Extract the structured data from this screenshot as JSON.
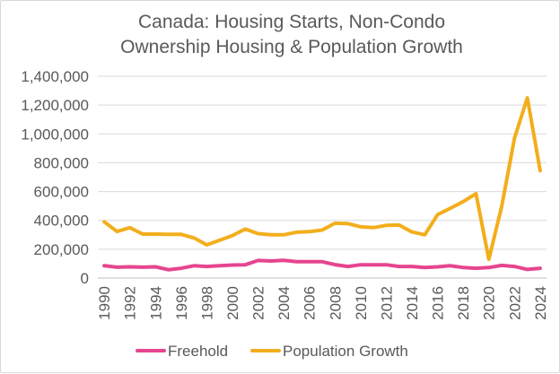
{
  "chart_data": {
    "type": "line",
    "title_lines": [
      "Canada: Housing Starts, Non-Condo",
      "Ownership Housing & Population Growth"
    ],
    "xlabel": "",
    "ylabel": "",
    "x": [
      1990,
      1991,
      1992,
      1993,
      1994,
      1995,
      1996,
      1997,
      1998,
      1999,
      2000,
      2001,
      2002,
      2003,
      2004,
      2005,
      2006,
      2007,
      2008,
      2009,
      2010,
      2011,
      2012,
      2013,
      2014,
      2015,
      2016,
      2017,
      2018,
      2019,
      2020,
      2021,
      2022,
      2023,
      2024
    ],
    "x_tick_labels": [
      "1990",
      "1992",
      "1994",
      "1996",
      "1998",
      "2000",
      "2002",
      "2004",
      "2006",
      "2008",
      "2010",
      "2012",
      "2014",
      "2016",
      "2018",
      "2020",
      "2022",
      "2024"
    ],
    "ylim": [
      0,
      1400000
    ],
    "y_tick_labels": [
      "0",
      "200,000",
      "400,000",
      "600,000",
      "800,000",
      "1,000,000",
      "1,200,000",
      "1,400,000"
    ],
    "y_tick_values": [
      0,
      200000,
      400000,
      600000,
      800000,
      1000000,
      1200000,
      1400000
    ],
    "grid": true,
    "legend_position": "bottom",
    "series": [
      {
        "name": "Freehold",
        "color": "#e6458f",
        "values": [
          85000,
          75000,
          78000,
          75000,
          78000,
          58000,
          68000,
          85000,
          80000,
          86000,
          90000,
          92000,
          122000,
          118000,
          123000,
          113000,
          113000,
          113000,
          93000,
          80000,
          92000,
          92000,
          92000,
          80000,
          80000,
          73000,
          78000,
          85000,
          73000,
          68000,
          73000,
          88000,
          80000,
          60000,
          68000
        ]
      },
      {
        "name": "Population Growth",
        "color": "#f2ae1c",
        "values": [
          390000,
          323000,
          350000,
          305000,
          305000,
          303000,
          303000,
          278000,
          230000,
          262000,
          295000,
          340000,
          308000,
          300000,
          300000,
          318000,
          322000,
          333000,
          380000,
          378000,
          355000,
          350000,
          365000,
          368000,
          320000,
          300000,
          440000,
          485000,
          530000,
          585000,
          130000,
          495000,
          970000,
          1250000,
          745000
        ]
      }
    ]
  }
}
